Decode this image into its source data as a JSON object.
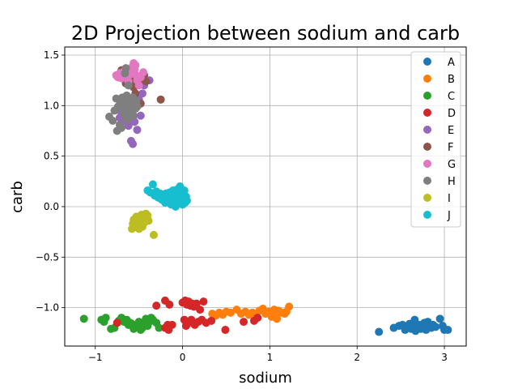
{
  "chart_data": {
    "type": "scatter",
    "title": "2D Projection between sodium and carb",
    "xlabel": "sodium",
    "ylabel": "carb",
    "xlim": [
      -1.35,
      3.25
    ],
    "ylim": [
      -1.38,
      1.58
    ],
    "xticks": [
      -1,
      0,
      1,
      2,
      3
    ],
    "xtick_labels": [
      "−1",
      "0",
      "1",
      "2",
      "3"
    ],
    "yticks": [
      -1.0,
      -0.5,
      0.0,
      0.5,
      1.0,
      1.5
    ],
    "ytick_labels": [
      "−1.0",
      "−0.5",
      "0.0",
      "0.5",
      "1.0",
      "1.5"
    ],
    "grid": true,
    "legend_position": "top-right",
    "series": [
      {
        "name": "A",
        "color": "#1f77b4",
        "points": [
          [
            2.25,
            -1.24
          ],
          [
            2.42,
            -1.2
          ],
          [
            2.48,
            -1.18
          ],
          [
            2.52,
            -1.17
          ],
          [
            2.55,
            -1.22
          ],
          [
            2.57,
            -1.19
          ],
          [
            2.6,
            -1.16
          ],
          [
            2.62,
            -1.21
          ],
          [
            2.64,
            -1.18
          ],
          [
            2.66,
            -1.12
          ],
          [
            2.67,
            -1.23
          ],
          [
            2.69,
            -1.2
          ],
          [
            2.71,
            -1.17
          ],
          [
            2.73,
            -1.21
          ],
          [
            2.75,
            -1.19
          ],
          [
            2.77,
            -1.15
          ],
          [
            2.79,
            -1.22
          ],
          [
            2.81,
            -1.14
          ],
          [
            2.83,
            -1.18
          ],
          [
            2.85,
            -1.2
          ],
          [
            2.87,
            -1.17
          ],
          [
            2.9,
            -1.19
          ],
          [
            2.95,
            -1.11
          ],
          [
            2.98,
            -1.18
          ],
          [
            3.0,
            -1.22
          ],
          [
            3.04,
            -1.22
          ]
        ]
      },
      {
        "name": "B",
        "color": "#ff7f0e",
        "points": [
          [
            0.34,
            -1.06
          ],
          [
            0.38,
            -1.08
          ],
          [
            0.42,
            -1.05
          ],
          [
            0.46,
            -1.07
          ],
          [
            0.5,
            -1.04
          ],
          [
            0.55,
            -1.05
          ],
          [
            0.62,
            -1.02
          ],
          [
            0.67,
            -1.06
          ],
          [
            0.72,
            -1.04
          ],
          [
            0.76,
            -1.07
          ],
          [
            0.8,
            -1.05
          ],
          [
            0.84,
            -1.08
          ],
          [
            0.88,
            -1.03
          ],
          [
            0.92,
            -1.01
          ],
          [
            0.95,
            -1.06
          ],
          [
            0.99,
            -1.04
          ],
          [
            1.02,
            -1.09
          ],
          [
            1.05,
            -1.02
          ],
          [
            1.08,
            -1.07
          ],
          [
            1.1,
            -1.03
          ],
          [
            1.14,
            -1.05
          ],
          [
            1.17,
            -1.06
          ],
          [
            1.19,
            -1.04
          ],
          [
            1.22,
            -0.99
          ],
          [
            1.08,
            -1.11
          ]
        ]
      },
      {
        "name": "C",
        "color": "#2ca02c",
        "points": [
          [
            -1.13,
            -1.11
          ],
          [
            -0.93,
            -1.12
          ],
          [
            -0.9,
            -1.14
          ],
          [
            -0.88,
            -1.1
          ],
          [
            -0.82,
            -1.21
          ],
          [
            -0.78,
            -1.2
          ],
          [
            -0.73,
            -1.13
          ],
          [
            -0.7,
            -1.1
          ],
          [
            -0.67,
            -1.14
          ],
          [
            -0.64,
            -1.12
          ],
          [
            -0.62,
            -1.17
          ],
          [
            -0.6,
            -1.15
          ],
          [
            -0.58,
            -1.16
          ],
          [
            -0.56,
            -1.21
          ],
          [
            -0.54,
            -1.18
          ],
          [
            -0.52,
            -1.19
          ],
          [
            -0.5,
            -1.14
          ],
          [
            -0.48,
            -1.22
          ],
          [
            -0.46,
            -1.2
          ],
          [
            -0.44,
            -1.16
          ],
          [
            -0.42,
            -1.11
          ],
          [
            -0.4,
            -1.18
          ],
          [
            -0.38,
            -1.14
          ],
          [
            -0.36,
            -1.1
          ],
          [
            -0.34,
            -1.12
          ],
          [
            -0.3,
            -1.15
          ],
          [
            -0.27,
            -1.2
          ]
        ]
      },
      {
        "name": "D",
        "color": "#d62728",
        "points": [
          [
            -0.75,
            -1.15
          ],
          [
            -0.3,
            -0.98
          ],
          [
            -0.2,
            -0.93
          ],
          [
            -0.15,
            -0.97
          ],
          [
            -0.2,
            -1.2
          ],
          [
            -0.17,
            -1.17
          ],
          [
            -0.16,
            -1.22
          ],
          [
            -0.12,
            -1.17
          ],
          [
            0.0,
            -0.95
          ],
          [
            0.03,
            -0.93
          ],
          [
            0.05,
            -0.97
          ],
          [
            0.07,
            -0.94
          ],
          [
            0.09,
            -0.98
          ],
          [
            0.11,
            -0.96
          ],
          [
            0.13,
            -0.99
          ],
          [
            0.16,
            -0.96
          ],
          [
            0.2,
            -1.02
          ],
          [
            0.24,
            -0.94
          ],
          [
            0.02,
            -1.12
          ],
          [
            0.04,
            -1.18
          ],
          [
            0.07,
            -1.15
          ],
          [
            0.1,
            -1.12
          ],
          [
            0.14,
            -1.17
          ],
          [
            0.18,
            -1.14
          ],
          [
            0.22,
            -1.12
          ],
          [
            0.27,
            -1.15
          ],
          [
            0.33,
            -1.13
          ],
          [
            0.49,
            -1.22
          ],
          [
            0.7,
            -1.14
          ],
          [
            0.82,
            -1.13
          ],
          [
            0.86,
            -1.1
          ]
        ]
      },
      {
        "name": "E",
        "color": "#9467bd",
        "points": [
          [
            -0.72,
            0.88
          ],
          [
            -0.7,
            0.93
          ],
          [
            -0.68,
            0.98
          ],
          [
            -0.67,
            0.85
          ],
          [
            -0.65,
            0.97
          ],
          [
            -0.63,
            0.92
          ],
          [
            -0.62,
            0.8
          ],
          [
            -0.6,
            0.88
          ],
          [
            -0.59,
            0.65
          ],
          [
            -0.58,
            0.95
          ],
          [
            -0.57,
            0.62
          ],
          [
            -0.55,
            0.84
          ],
          [
            -0.54,
            1.0
          ],
          [
            -0.52,
            0.76
          ],
          [
            -0.5,
            1.06
          ],
          [
            -0.48,
            0.9
          ],
          [
            -0.46,
            1.12
          ],
          [
            -0.44,
            1.2
          ],
          [
            -0.42,
            1.25
          ],
          [
            -0.38,
            1.25
          ],
          [
            -0.55,
            1.3
          ]
        ]
      },
      {
        "name": "F",
        "color": "#8c564b",
        "points": [
          [
            -0.7,
            1.35
          ],
          [
            -0.65,
            1.22
          ],
          [
            -0.62,
            1.05
          ],
          [
            -0.6,
            1.3
          ],
          [
            -0.58,
            1.25
          ],
          [
            -0.56,
            1.18
          ],
          [
            -0.54,
            1.12
          ],
          [
            -0.52,
            1.28
          ],
          [
            -0.5,
            1.22
          ],
          [
            -0.48,
            1.02
          ],
          [
            -0.46,
            1.26
          ],
          [
            -0.44,
            1.3
          ],
          [
            -0.42,
            1.24
          ],
          [
            -0.25,
            1.06
          ]
        ]
      },
      {
        "name": "G",
        "color": "#e377c2",
        "points": [
          [
            -0.76,
            1.3
          ],
          [
            -0.74,
            1.28
          ],
          [
            -0.72,
            1.32
          ],
          [
            -0.7,
            1.27
          ],
          [
            -0.68,
            1.33
          ],
          [
            -0.66,
            1.35
          ],
          [
            -0.64,
            1.29
          ],
          [
            -0.62,
            1.24
          ],
          [
            -0.6,
            1.31
          ],
          [
            -0.58,
            1.38
          ],
          [
            -0.56,
            1.42
          ],
          [
            -0.55,
            1.36
          ],
          [
            -0.54,
            1.4
          ],
          [
            -0.53,
            1.3
          ],
          [
            -0.52,
            1.25
          ],
          [
            -0.5,
            1.2
          ],
          [
            -0.48,
            1.28
          ],
          [
            -0.45,
            1.33
          ]
        ]
      },
      {
        "name": "H",
        "color": "#7f7f7f",
        "points": [
          [
            -0.84,
            0.89
          ],
          [
            -0.8,
            0.85
          ],
          [
            -0.78,
            0.95
          ],
          [
            -0.76,
            1.07
          ],
          [
            -0.75,
            0.75
          ],
          [
            -0.74,
            0.99
          ],
          [
            -0.72,
            0.81
          ],
          [
            -0.71,
            1.02
          ],
          [
            -0.7,
            0.78
          ],
          [
            -0.69,
            1.08
          ],
          [
            -0.68,
            0.92
          ],
          [
            -0.67,
            0.97
          ],
          [
            -0.66,
            1.04
          ],
          [
            -0.65,
            0.88
          ],
          [
            -0.64,
            1.1
          ],
          [
            -0.63,
            0.95
          ],
          [
            -0.62,
            1.01
          ],
          [
            -0.61,
            0.93
          ],
          [
            -0.6,
            0.99
          ],
          [
            -0.59,
            1.05
          ],
          [
            -0.58,
            0.96
          ],
          [
            -0.57,
            1.08
          ],
          [
            -0.56,
            0.9
          ],
          [
            -0.55,
            1.02
          ],
          [
            -0.54,
            0.97
          ],
          [
            -0.53,
            1.04
          ],
          [
            -0.52,
            0.99
          ],
          [
            -0.62,
            1.2
          ],
          [
            -0.65,
            1.37
          ],
          [
            -0.66,
            1.32
          ],
          [
            -0.63,
            0.86
          ]
        ]
      },
      {
        "name": "I",
        "color": "#bcbd22",
        "points": [
          [
            -0.58,
            -0.22
          ],
          [
            -0.57,
            -0.17
          ],
          [
            -0.56,
            -0.13
          ],
          [
            -0.55,
            -0.2
          ],
          [
            -0.54,
            -0.15
          ],
          [
            -0.53,
            -0.1
          ],
          [
            -0.52,
            -0.19
          ],
          [
            -0.51,
            -0.14
          ],
          [
            -0.5,
            -0.22
          ],
          [
            -0.49,
            -0.11
          ],
          [
            -0.48,
            -0.17
          ],
          [
            -0.47,
            -0.08
          ],
          [
            -0.46,
            -0.2
          ],
          [
            -0.45,
            -0.13
          ],
          [
            -0.44,
            -0.16
          ],
          [
            -0.43,
            -0.1
          ],
          [
            -0.42,
            -0.07
          ],
          [
            -0.41,
            -0.12
          ],
          [
            -0.4,
            -0.09
          ],
          [
            -0.39,
            -0.14
          ],
          [
            -0.33,
            -0.28
          ]
        ]
      },
      {
        "name": "J",
        "color": "#17becf",
        "points": [
          [
            -0.4,
            0.16
          ],
          [
            -0.37,
            0.14
          ],
          [
            -0.34,
            0.22
          ],
          [
            -0.32,
            0.11
          ],
          [
            -0.3,
            0.15
          ],
          [
            -0.28,
            0.09
          ],
          [
            -0.26,
            0.13
          ],
          [
            -0.24,
            0.07
          ],
          [
            -0.22,
            0.12
          ],
          [
            -0.2,
            0.04
          ],
          [
            -0.18,
            0.1
          ],
          [
            -0.16,
            0.06
          ],
          [
            -0.15,
            0.14
          ],
          [
            -0.13,
            0.02
          ],
          [
            -0.12,
            0.09
          ],
          [
            -0.1,
            0.05
          ],
          [
            -0.09,
            0.12
          ],
          [
            -0.08,
            0.0
          ],
          [
            -0.07,
            0.07
          ],
          [
            -0.06,
            0.17
          ],
          [
            -0.05,
            0.03
          ],
          [
            -0.04,
            0.11
          ],
          [
            -0.03,
            0.2
          ],
          [
            -0.02,
            0.06
          ],
          [
            -0.01,
            0.14
          ],
          [
            0.0,
            0.02
          ],
          [
            0.01,
            0.09
          ],
          [
            0.02,
            0.16
          ],
          [
            0.03,
            0.04
          ],
          [
            0.04,
            0.1
          ],
          [
            0.05,
            0.06
          ],
          [
            -0.11,
            0.16
          ],
          [
            -0.19,
            0.13
          ]
        ]
      }
    ]
  }
}
